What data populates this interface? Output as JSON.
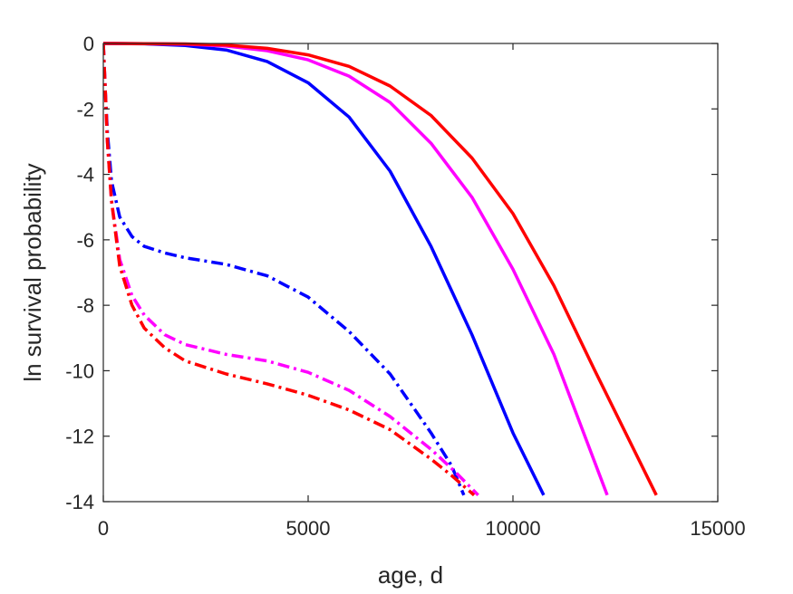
{
  "chart_data": {
    "type": "line",
    "title": "",
    "xlabel": "age, d",
    "ylabel": "ln survival probability",
    "xlim": [
      0,
      15000
    ],
    "ylim": [
      -14,
      0
    ],
    "xticks": [
      0,
      5000,
      10000,
      15000
    ],
    "yticks": [
      0,
      -2,
      -4,
      -6,
      -8,
      -10,
      -12,
      -14
    ],
    "xtick_labels": [
      "0",
      "5000",
      "10000",
      "15000"
    ],
    "ytick_labels": [
      "0",
      "-2",
      "-4",
      "-6",
      "-8",
      "-10",
      "-12",
      "-14"
    ],
    "grid": false,
    "legend": "none",
    "series": [
      {
        "color": "#0000ff",
        "style": "solid",
        "x": [
          0,
          1000,
          2000,
          3000,
          4000,
          5000,
          6000,
          7000,
          8000,
          9000,
          10000,
          10750
        ],
        "y": [
          0,
          -0.01,
          -0.06,
          -0.2,
          -0.55,
          -1.2,
          -2.25,
          -3.9,
          -6.2,
          -8.9,
          -11.9,
          -13.8
        ]
      },
      {
        "color": "#ff00ff",
        "style": "solid",
        "x": [
          0,
          1000,
          2000,
          3000,
          4000,
          5000,
          6000,
          7000,
          8000,
          9000,
          10000,
          11000,
          12300
        ],
        "y": [
          0,
          -0.005,
          -0.02,
          -0.08,
          -0.22,
          -0.5,
          -1.0,
          -1.8,
          -3.05,
          -4.7,
          -6.9,
          -9.5,
          -13.8
        ]
      },
      {
        "color": "#ff0000",
        "style": "solid",
        "x": [
          0,
          1000,
          2000,
          3000,
          4000,
          5000,
          6000,
          7000,
          8000,
          9000,
          10000,
          11000,
          12000,
          13500
        ],
        "y": [
          0,
          -0.005,
          -0.015,
          -0.05,
          -0.15,
          -0.35,
          -0.7,
          -1.3,
          -2.2,
          -3.5,
          -5.2,
          -7.4,
          -10.0,
          -13.8
        ]
      },
      {
        "color": "#0000ff",
        "style": "dashdot",
        "x": [
          0,
          50,
          100,
          200,
          400,
          700,
          1000,
          1500,
          2000,
          3000,
          4000,
          5000,
          6000,
          7000,
          8000,
          8500,
          8800
        ],
        "y": [
          0,
          -1.5,
          -2.7,
          -4.2,
          -5.3,
          -5.9,
          -6.2,
          -6.4,
          -6.55,
          -6.75,
          -7.1,
          -7.75,
          -8.8,
          -10.1,
          -11.9,
          -12.9,
          -13.8
        ]
      },
      {
        "color": "#ff00ff",
        "style": "dashdot",
        "x": [
          0,
          50,
          100,
          200,
          400,
          700,
          1000,
          1500,
          2000,
          3000,
          4000,
          5000,
          6000,
          7000,
          8000,
          8600,
          9150
        ],
        "y": [
          0,
          -1.5,
          -3.0,
          -4.8,
          -6.6,
          -7.7,
          -8.3,
          -8.9,
          -9.2,
          -9.5,
          -9.7,
          -10.05,
          -10.6,
          -11.4,
          -12.4,
          -13.1,
          -13.8
        ]
      },
      {
        "color": "#ff0000",
        "style": "dashdot",
        "x": [
          0,
          50,
          100,
          200,
          400,
          700,
          1000,
          1500,
          2000,
          3000,
          4000,
          5000,
          6000,
          7000,
          8000,
          8500,
          9050
        ],
        "y": [
          0,
          -1.5,
          -3.0,
          -4.8,
          -6.8,
          -8.0,
          -8.7,
          -9.3,
          -9.7,
          -10.1,
          -10.4,
          -10.75,
          -11.2,
          -11.8,
          -12.7,
          -13.2,
          -13.8
        ]
      }
    ]
  }
}
